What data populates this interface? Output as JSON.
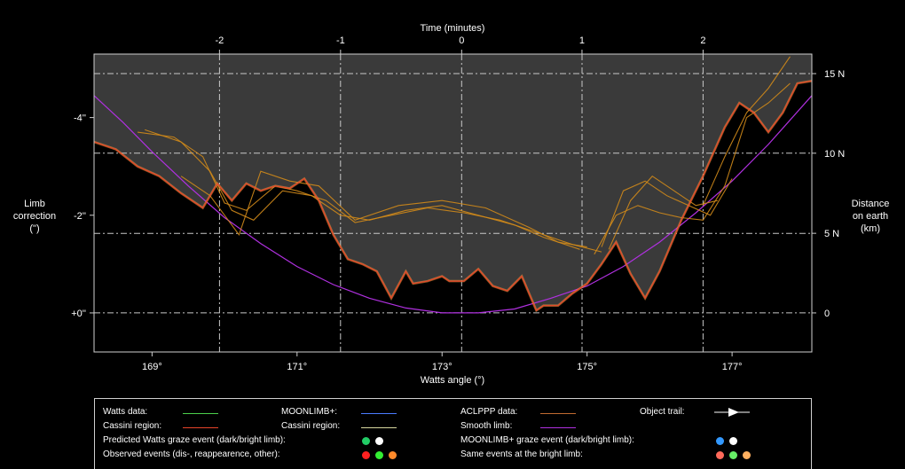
{
  "chart_data": {
    "type": "line",
    "title": "",
    "xlabel": "Watts angle (°)",
    "x_top_label": "Time (minutes)",
    "ylabel_left": [
      "Limb",
      "correction",
      "(\")"
    ],
    "ylabel_right": [
      "Distance",
      "on earth",
      "(km)"
    ],
    "xlim": [
      168.2,
      178.1
    ],
    "ylim": [
      0.8,
      -5.3
    ],
    "x_ticks": [
      169,
      171,
      173,
      175,
      177
    ],
    "x_tick_labels": [
      "169°",
      "171°",
      "173°",
      "175°",
      "177°"
    ],
    "top_ticks": [
      -2,
      -1,
      0,
      1,
      2
    ],
    "top_tick_labels": [
      "-2",
      "-1",
      "0",
      "1",
      "2"
    ],
    "top_tick_x": [
      169.93,
      171.6,
      173.27,
      174.93,
      176.6
    ],
    "y_ticks": [
      -4,
      -2,
      0
    ],
    "y_tick_labels": [
      "-4''",
      "-2''",
      "+0''"
    ],
    "right_ticks": [
      15,
      10,
      5,
      0
    ],
    "right_tick_labels": [
      "15 N",
      "10 N",
      "5 N",
      "0"
    ],
    "right_tick_y": [
      -4.9,
      -3.27,
      -1.63,
      0
    ],
    "grid": true,
    "colors": {
      "profile_fill": "#3a3a3a",
      "watts_profile": "#e8442a",
      "smooth_limb": "#b030e0",
      "aclppp": "#d08a1a",
      "grid": "#c8c8c8"
    },
    "series": [
      {
        "name": "Watts data",
        "x": [
          168.2,
          168.5,
          168.8,
          169.1,
          169.4,
          169.7,
          169.9,
          170.1,
          170.3,
          170.5,
          170.7,
          170.9,
          171.1,
          171.3,
          171.5,
          171.7,
          171.9,
          172.1,
          172.3,
          172.5,
          172.6,
          172.8,
          173.0,
          173.1,
          173.3,
          173.5,
          173.7,
          173.9,
          174.1,
          174.3,
          174.4,
          174.6,
          174.8,
          175.0,
          175.2,
          175.4,
          175.6,
          175.8,
          176.0,
          176.3,
          176.6,
          176.9,
          177.1,
          177.3,
          177.5,
          177.7,
          177.9,
          178.1
        ],
        "y": [
          -3.5,
          -3.35,
          -3.0,
          -2.8,
          -2.45,
          -2.15,
          -2.65,
          -2.3,
          -2.65,
          -2.5,
          -2.6,
          -2.55,
          -2.75,
          -2.3,
          -1.6,
          -1.1,
          -1.0,
          -0.85,
          -0.3,
          -0.85,
          -0.6,
          -0.65,
          -0.75,
          -0.65,
          -0.65,
          -0.9,
          -0.55,
          -0.45,
          -0.75,
          -0.05,
          -0.15,
          -0.15,
          -0.4,
          -0.6,
          -1.0,
          -1.45,
          -0.8,
          -0.3,
          -0.85,
          -1.9,
          -2.8,
          -3.8,
          -4.3,
          -4.1,
          -3.7,
          -4.1,
          -4.7,
          -4.75
        ]
      },
      {
        "name": "Smooth limb",
        "x": [
          168.2,
          168.6,
          169.0,
          169.5,
          170.0,
          170.5,
          171.0,
          171.5,
          172.0,
          172.5,
          173.0,
          173.5,
          174.0,
          174.5,
          175.0,
          175.5,
          176.0,
          176.5,
          177.0,
          177.5,
          178.1
        ],
        "y": [
          -4.45,
          -3.9,
          -3.3,
          -2.6,
          -1.95,
          -1.42,
          -0.95,
          -0.58,
          -0.3,
          -0.1,
          0.0,
          0.0,
          -0.08,
          -0.3,
          -0.55,
          -0.95,
          -1.45,
          -2.05,
          -2.7,
          -3.45,
          -4.45
        ]
      },
      {
        "name": "ACLPPP data",
        "tracks": [
          {
            "x": [
              168.8,
              169.3,
              169.7,
              170.0,
              170.3,
              170.7,
              171.0,
              171.4,
              171.8,
              172.3,
              172.8,
              173.3,
              173.8,
              174.3,
              174.8,
              175.2
            ],
            "y": [
              -3.7,
              -3.6,
              -3.2,
              -2.25,
              -2.1,
              -2.6,
              -2.5,
              -2.3,
              -1.85,
              -2.0,
              -2.15,
              -2.05,
              -1.9,
              -1.65,
              -1.4,
              -1.25
            ]
          },
          {
            "x": [
              168.9,
              169.4,
              169.8,
              170.1,
              170.4,
              170.8,
              171.2,
              171.6,
              172.0,
              172.5,
              173.0,
              173.5,
              174.0,
              174.4,
              174.9
            ],
            "y": [
              -3.75,
              -3.5,
              -2.9,
              -2.1,
              -1.9,
              -2.5,
              -2.4,
              -2.0,
              -1.9,
              -2.1,
              -2.2,
              -2.0,
              -1.8,
              -1.55,
              -1.3
            ]
          },
          {
            "x": [
              169.4,
              169.8,
              170.2,
              170.5,
              170.9,
              171.3,
              171.8,
              172.4,
              173.0,
              173.6,
              174.2,
              174.6,
              175.0
            ],
            "y": [
              -2.8,
              -2.4,
              -1.6,
              -2.9,
              -2.7,
              -2.6,
              -1.9,
              -2.2,
              -2.3,
              -2.15,
              -1.75,
              -1.45,
              -1.35
            ]
          },
          {
            "x": [
              175.3,
              175.6,
              175.9,
              176.2,
              176.5,
              176.8
            ],
            "y": [
              -1.3,
              -2.3,
              -2.8,
              -2.5,
              -2.2,
              -2.3
            ]
          },
          {
            "x": [
              175.2,
              175.5,
              175.8,
              176.1,
              176.4,
              176.7,
              177.0
            ],
            "y": [
              -1.35,
              -2.5,
              -2.7,
              -2.4,
              -2.2,
              -2.0,
              -2.75
            ]
          },
          {
            "x": [
              175.1,
              175.4,
              175.7,
              176.0,
              176.3,
              176.6,
              176.9,
              177.2,
              177.5,
              177.8
            ],
            "y": [
              -1.2,
              -2.0,
              -2.2,
              -2.05,
              -1.95,
              -1.9,
              -2.6,
              -4.0,
              -4.3,
              -4.7
            ]
          },
          {
            "x": [
              176.6,
              176.9,
              177.2,
              177.5,
              177.8
            ],
            "y": [
              -2.2,
              -3.2,
              -4.1,
              -4.6,
              -5.25
            ]
          }
        ]
      }
    ]
  },
  "legend": {
    "rows": [
      [
        "Watts data:",
        "MOONLIMB+:",
        "ACLPPP data:",
        "Object trail:"
      ],
      [
        "Cassini region:",
        "Cassini region:",
        "Smooth limb:"
      ],
      [
        "Predicted Watts graze event (dark/bright limb):",
        "MOONLIMB+ graze event (dark/bright limb):"
      ],
      [
        "Observed events (dis-, reappearence, other):",
        "Same events at the bright limb:"
      ]
    ],
    "swatch_colors": {
      "watts_data": "#4ccf4c",
      "watts_cassini": "#e8442a",
      "moonlimb": "#4a7cff",
      "moonlimb_cassini": "#d8d8a0",
      "aclppp": "#c06a30",
      "smooth_limb": "#b030e0"
    },
    "dots": {
      "predicted_watts": [
        "#22cc66",
        "#ffffff"
      ],
      "moonlimb_graze": [
        "#3399ff",
        "#ffffff"
      ],
      "observed": [
        "#ff2020",
        "#33ee33",
        "#ff8a2a"
      ],
      "bright_limb": [
        "#ff6a5a",
        "#66ee66",
        "#ffb060"
      ]
    }
  }
}
